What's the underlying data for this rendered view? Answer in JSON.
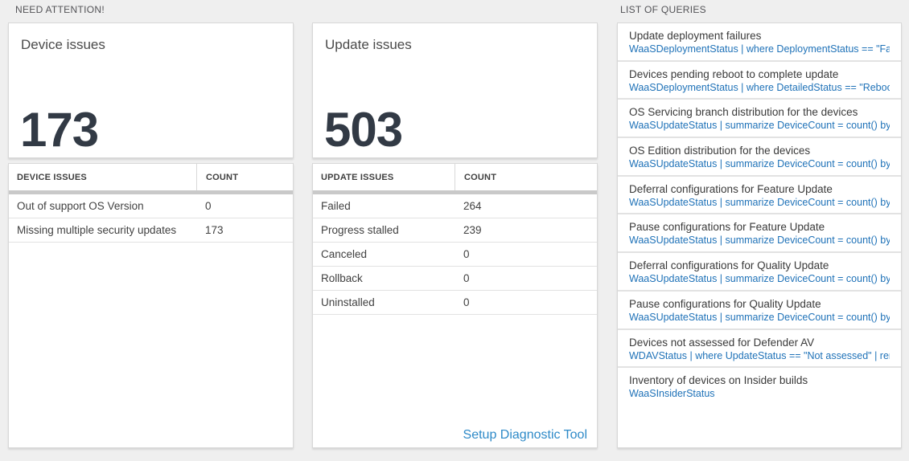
{
  "colors": {
    "page_bg": "#efefef",
    "card_bg": "#ffffff",
    "card_border": "#d8d8d8",
    "query_blue": "#1f72b8",
    "link_blue": "#2e8ac8",
    "kpi_number_color": "#323a45",
    "table_header_bar": "#c9c9c9",
    "section_label_color": "#535357"
  },
  "sections": {
    "need_attention_label": "NEED ATTENTION!",
    "queries_label": "LIST OF QUERIES"
  },
  "device_tile": {
    "title": "Device issues",
    "value": "173"
  },
  "update_tile": {
    "title": "Update issues",
    "value": "503"
  },
  "device_table": {
    "col_issue": "DEVICE ISSUES",
    "col_count": "COUNT",
    "rows": [
      {
        "label": "Out of support OS Version",
        "count": "0"
      },
      {
        "label": "Missing multiple security updates",
        "count": "173"
      }
    ]
  },
  "update_table": {
    "col_issue": "UPDATE ISSUES",
    "col_count": "COUNT",
    "rows": [
      {
        "label": "Failed",
        "count": "264"
      },
      {
        "label": "Progress stalled",
        "count": "239"
      },
      {
        "label": "Canceled",
        "count": "0"
      },
      {
        "label": "Rollback",
        "count": "0"
      },
      {
        "label": "Uninstalled",
        "count": "0"
      }
    ],
    "footer_link": "Setup Diagnostic Tool"
  },
  "queries": [
    {
      "title": "Update deployment failures",
      "query": "WaaSDeploymentStatus | where DeploymentStatus == \"Failed\" |..."
    },
    {
      "title": "Devices pending reboot to complete update",
      "query": "WaaSDeploymentStatus | where DetailedStatus == \"Reboot pend..."
    },
    {
      "title": "OS Servicing branch distribution for the devices",
      "query": "WaaSUpdateStatus | summarize DeviceCount = count() by OSSer..."
    },
    {
      "title": "OS Edition distribution for the devices",
      "query": "WaaSUpdateStatus | summarize DeviceCount = count() by OSEdit..."
    },
    {
      "title": "Deferral configurations for Feature Update",
      "query": "WaaSUpdateStatus | summarize DeviceCount = count() by Featur..."
    },
    {
      "title": "Pause configurations for Feature Update",
      "query": "WaaSUpdateStatus | summarize DeviceCount = count() by Featur..."
    },
    {
      "title": "Deferral configurations for Quality Update",
      "query": "WaaSUpdateStatus | summarize DeviceCount = count() by Qualit..."
    },
    {
      "title": "Pause configurations for Quality Update",
      "query": "WaaSUpdateStatus | summarize DeviceCount = count() by Qualit..."
    },
    {
      "title": "Devices not assessed for Defender AV",
      "query": "WDAVStatus | where UpdateStatus == \"Not assessed\" | render ta..."
    },
    {
      "title": "Inventory of devices on Insider builds",
      "query": "WaaSInsiderStatus"
    }
  ]
}
